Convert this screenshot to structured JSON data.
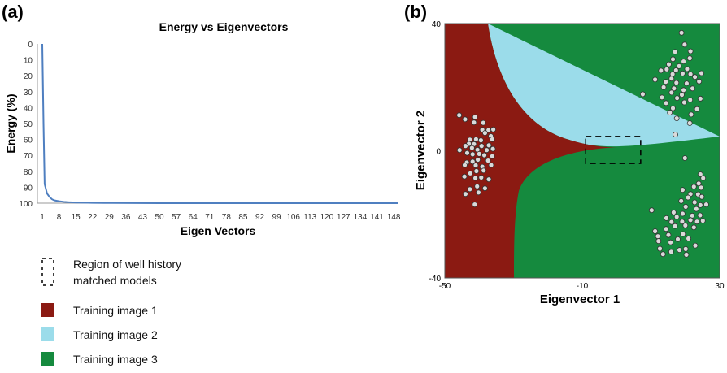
{
  "panel_a": {
    "label": "(a)"
  },
  "panel_b": {
    "label": "(b)"
  },
  "legend": {
    "items": [
      {
        "name": "region",
        "label_lines": [
          "Region of well history",
          "matched models"
        ]
      },
      {
        "name": "ti1",
        "label_lines": [
          "Training image 1"
        ],
        "color": "#8B1A12"
      },
      {
        "name": "ti2",
        "label_lines": [
          "Training image 2"
        ],
        "color": "#9BDCEA"
      },
      {
        "name": "ti3",
        "label_lines": [
          "Training image 3"
        ],
        "color": "#158A3E"
      }
    ]
  },
  "chart_data": [
    {
      "type": "line",
      "title": "Energy vs Eigenvectors",
      "xlabel": "Eigen Vectors",
      "ylabel": "Energy (%)",
      "y_inverted": true,
      "ylim": [
        0,
        100
      ],
      "yticks": [
        0,
        10,
        20,
        30,
        40,
        50,
        60,
        70,
        80,
        90,
        100
      ],
      "xticks": [
        1,
        8,
        15,
        22,
        29,
        36,
        43,
        50,
        57,
        64,
        71,
        78,
        85,
        92,
        99,
        106,
        113,
        120,
        127,
        134,
        141,
        148
      ],
      "xlim": [
        1,
        150
      ],
      "line_color": "#4F7FC0",
      "series": [
        {
          "x": [
            1,
            1.5,
            2,
            3,
            4,
            5,
            6,
            8,
            10,
            12,
            15,
            18,
            22,
            30,
            50,
            80,
            110,
            150
          ],
          "y": [
            0,
            50,
            88,
            94,
            96,
            97.5,
            98.2,
            98.8,
            99.2,
            99.4,
            99.6,
            99.7,
            99.8,
            99.9,
            100,
            100,
            100,
            100
          ]
        }
      ],
      "grid": false
    },
    {
      "type": "scatter",
      "xlabel": "Eigenvector 1",
      "ylabel": "Eigenvector 2",
      "xlim": [
        -50,
        30
      ],
      "ylim": [
        -40,
        40
      ],
      "xticks": [
        -50,
        -10,
        30
      ],
      "yticks": [
        -40,
        0,
        40
      ],
      "regions": [
        {
          "name": "Training image 1",
          "color": "#8B1A12"
        },
        {
          "name": "Training image 2",
          "color": "#9BDCEA"
        },
        {
          "name": "Training image 3",
          "color": "#158A3E"
        }
      ],
      "highlight_box": {
        "x": [
          -9,
          7
        ],
        "y": [
          -4,
          4.5
        ]
      },
      "clusters": [
        {
          "region": "Training image 1",
          "points": [
            [
              -45.8,
              11.2
            ],
            [
              -44.1,
              9.9
            ],
            [
              -41.2,
              10.6
            ],
            [
              -41.5,
              8.9
            ],
            [
              -38.8,
              8.8
            ],
            [
              -39.1,
              6.6
            ],
            [
              -37.3,
              6.5
            ],
            [
              -35.9,
              6.7
            ],
            [
              -38.3,
              5.6
            ],
            [
              -36.6,
              4.6
            ],
            [
              -36.2,
              3.6
            ],
            [
              -39.5,
              3.3
            ],
            [
              -40.9,
              3.6
            ],
            [
              -42.7,
              3.5
            ],
            [
              -43.0,
              2.2
            ],
            [
              -41.5,
              2.1
            ],
            [
              -39.3,
              1.5
            ],
            [
              -37.2,
              1.7
            ],
            [
              -36.0,
              0.6
            ],
            [
              -37.8,
              0.2
            ],
            [
              -40.5,
              0.3
            ],
            [
              -42.1,
              0.9
            ],
            [
              -44.0,
              1.5
            ],
            [
              -45.7,
              0.2
            ],
            [
              -43.5,
              -0.7
            ],
            [
              -41.9,
              -1.1
            ],
            [
              -40.0,
              -1.0
            ],
            [
              -38.5,
              -1.4
            ],
            [
              -36.2,
              -1.7
            ],
            [
              -37.4,
              -3.1
            ],
            [
              -40.4,
              -2.8
            ],
            [
              -41.9,
              -3.4
            ],
            [
              -43.6,
              -3.7
            ],
            [
              -44.2,
              -4.5
            ],
            [
              -41.0,
              -4.6
            ],
            [
              -39.1,
              -5.0
            ],
            [
              -36.5,
              -4.5
            ],
            [
              -38.7,
              -6.2
            ],
            [
              -40.8,
              -6.4
            ],
            [
              -42.6,
              -7.1
            ],
            [
              -44.3,
              -8.1
            ],
            [
              -41.1,
              -8.6
            ],
            [
              -39.4,
              -8.4
            ],
            [
              -37.2,
              -9.0
            ],
            [
              -40.6,
              -11.2
            ],
            [
              -42.7,
              -12.1
            ],
            [
              -44.0,
              -13.6
            ],
            [
              -40.2,
              -13.1
            ],
            [
              -38.3,
              -11.8
            ],
            [
              -41.3,
              -16.9
            ]
          ]
        },
        {
          "region": "Training image 2",
          "points": [
            [
              18.9,
              37.1
            ],
            [
              19.8,
              33.4
            ],
            [
              17.0,
              31.1
            ],
            [
              21.5,
              31.3
            ],
            [
              16.4,
              28.8
            ],
            [
              19.5,
              28.1
            ],
            [
              21.3,
              29.1
            ],
            [
              15.2,
              27.2
            ],
            [
              18.2,
              26.6
            ],
            [
              20.5,
              25.7
            ],
            [
              17.3,
              25.3
            ],
            [
              14.6,
              25.6
            ],
            [
              12.9,
              25.2
            ],
            [
              16.3,
              24.1
            ],
            [
              19.2,
              24.3
            ],
            [
              21.5,
              24.1
            ],
            [
              24.7,
              24.4
            ],
            [
              22.8,
              23.2
            ],
            [
              16.0,
              22.7
            ],
            [
              11.2,
              22.4
            ],
            [
              14.3,
              21.7
            ],
            [
              17.4,
              21.4
            ],
            [
              20.4,
              21.2
            ],
            [
              24.0,
              21.8
            ],
            [
              13.7,
              20.0
            ],
            [
              16.7,
              19.6
            ],
            [
              19.5,
              19.1
            ],
            [
              22.1,
              19.6
            ],
            [
              16.0,
              18.3
            ],
            [
              19.0,
              17.6
            ],
            [
              7.6,
              17.8
            ],
            [
              13.2,
              16.8
            ],
            [
              17.6,
              16.6
            ],
            [
              21.4,
              16.0
            ],
            [
              24.4,
              16.4
            ],
            [
              19.7,
              15.2
            ],
            [
              14.4,
              15.0
            ],
            [
              16.4,
              13.4
            ],
            [
              23.4,
              13.1
            ],
            [
              15.5,
              12.0
            ],
            [
              21.7,
              11.4
            ],
            [
              17.5,
              10.2
            ],
            [
              21.3,
              8.7
            ],
            [
              17.1,
              5.1
            ]
          ]
        },
        {
          "region": "Training image 3",
          "points": [
            [
              19.9,
              -2.3
            ],
            [
              24.4,
              -7.4
            ],
            [
              25.2,
              -8.6
            ],
            [
              23.9,
              -10.3
            ],
            [
              22.5,
              -11.3
            ],
            [
              24.6,
              -11.6
            ],
            [
              19.2,
              -12.3
            ],
            [
              21.5,
              -13.6
            ],
            [
              23.7,
              -13.7
            ],
            [
              20.8,
              -14.7
            ],
            [
              24.8,
              -14.5
            ],
            [
              18.8,
              -15.8
            ],
            [
              22.7,
              -16.2
            ],
            [
              24.4,
              -17.1
            ],
            [
              26.1,
              -16.9
            ],
            [
              20.1,
              -17.6
            ],
            [
              23.2,
              -18.3
            ],
            [
              10.2,
              -18.7
            ],
            [
              16.6,
              -19.4
            ],
            [
              19.2,
              -19.8
            ],
            [
              22.0,
              -20.4
            ],
            [
              24.3,
              -20.3
            ],
            [
              17.5,
              -20.8
            ],
            [
              14.5,
              -21.2
            ],
            [
              21.5,
              -21.8
            ],
            [
              23.4,
              -22.3
            ],
            [
              16.0,
              -22.4
            ],
            [
              19.1,
              -22.3
            ],
            [
              25.1,
              -22.0
            ],
            [
              20.0,
              -23.5
            ],
            [
              17.0,
              -23.7
            ],
            [
              22.5,
              -24.1
            ],
            [
              14.4,
              -24.6
            ],
            [
              11.2,
              -25.3
            ],
            [
              15.1,
              -26.5
            ],
            [
              19.3,
              -26.2
            ],
            [
              12.0,
              -26.9
            ],
            [
              17.8,
              -27.8
            ],
            [
              20.9,
              -27.6
            ],
            [
              12.2,
              -28.4
            ],
            [
              15.7,
              -28.8
            ],
            [
              22.9,
              -29.8
            ],
            [
              12.6,
              -30.8
            ],
            [
              18.3,
              -31.2
            ],
            [
              20.1,
              -30.9
            ],
            [
              15.9,
              -31.8
            ],
            [
              13.5,
              -32.5
            ],
            [
              20.3,
              -32.7
            ]
          ]
        }
      ]
    }
  ]
}
